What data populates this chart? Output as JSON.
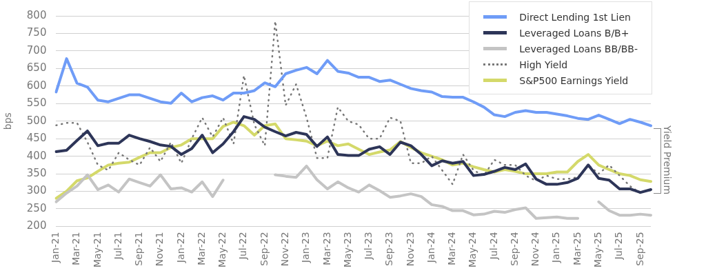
{
  "chart_data": {
    "type": "line",
    "ylabel": "bps",
    "ylim": [
      200,
      800
    ],
    "yticks": [
      200,
      250,
      300,
      350,
      400,
      450,
      500,
      550,
      600,
      650,
      700,
      750,
      800
    ],
    "grid": "y",
    "legend": "top right",
    "marker": "none",
    "categories": [
      "Jan-21",
      null,
      "Mar-21",
      null,
      "May-21",
      null,
      "Jul-21",
      null,
      "Sep-21",
      null,
      "Nov-21",
      null,
      "Jan-22",
      null,
      "Mar-22",
      null,
      "May-22",
      null,
      "Jul-22",
      null,
      "Sep-22",
      null,
      "Nov-22",
      null,
      "Jan-23",
      null,
      "Mar-23",
      null,
      "May-23",
      null,
      "Jul-23",
      null,
      "Sep-23",
      null,
      "Nov-23",
      null,
      "Jan-24",
      null,
      "Mar-24",
      null,
      "May-24",
      null,
      "Jul-24",
      null,
      "Sep-24",
      null,
      "Nov-24",
      null,
      "Jan-25",
      null,
      "Mar-25",
      null,
      "May-25",
      null,
      "Jul-25",
      null,
      "Sep-25",
      null
    ],
    "series": [
      {
        "name": "Direct Lending 1st Lien",
        "color": "#6f9cf7",
        "line_style": "solid",
        "values": [
          583,
          678,
          608,
          597,
          560,
          555,
          565,
          575,
          575,
          565,
          555,
          551,
          580,
          555,
          567,
          572,
          560,
          580,
          580,
          587,
          609,
          598,
          635,
          645,
          653,
          635,
          673,
          642,
          637,
          625,
          625,
          613,
          617,
          605,
          593,
          587,
          583,
          570,
          568,
          568,
          555,
          540,
          518,
          513,
          525,
          530,
          525,
          525,
          520,
          515,
          508,
          505,
          517,
          505,
          493,
          505,
          497,
          487
        ]
      },
      {
        "name": "Leveraged Loans B/B+",
        "color": "#2d3558",
        "line_style": "solid",
        "values": [
          413,
          417,
          445,
          472,
          430,
          437,
          437,
          460,
          450,
          442,
          432,
          428,
          405,
          422,
          460,
          410,
          435,
          470,
          513,
          505,
          483,
          470,
          458,
          468,
          462,
          428,
          455,
          405,
          402,
          402,
          420,
          427,
          405,
          440,
          430,
          405,
          373,
          387,
          380,
          385,
          345,
          348,
          357,
          368,
          362,
          378,
          335,
          320,
          320,
          325,
          337,
          375,
          337,
          332,
          307,
          307,
          297,
          305
        ]
      },
      {
        "name": "Leveraged Loans BB/BB-",
        "color": "#c4c4c4",
        "line_style": "solid",
        "values": [
          270,
          295,
          315,
          347,
          305,
          318,
          298,
          335,
          325,
          315,
          347,
          307,
          310,
          298,
          327,
          285,
          332,
          null,
          null,
          null,
          null,
          347,
          343,
          340,
          372,
          333,
          307,
          327,
          310,
          298,
          318,
          302,
          283,
          287,
          293,
          285,
          262,
          257,
          245,
          245,
          233,
          235,
          243,
          240,
          248,
          253,
          223,
          225,
          227,
          223,
          223,
          null,
          270,
          245,
          232,
          232,
          235,
          232
        ]
      },
      {
        "name": "High Yield",
        "color": "#777777",
        "line_style": "dotted",
        "values": [
          488,
          495,
          495,
          440,
          375,
          360,
          410,
          390,
          375,
          425,
          385,
          440,
          380,
          450,
          510,
          455,
          510,
          435,
          630,
          490,
          430,
          785,
          545,
          605,
          510,
          395,
          395,
          540,
          500,
          490,
          450,
          450,
          510,
          500,
          380,
          380,
          400,
          360,
          320,
          405,
          360,
          345,
          390,
          375,
          375,
          345,
          330,
          345,
          335,
          335,
          340,
          375,
          350,
          375,
          345,
          315,
          295,
          null
        ]
      },
      {
        "name": "S&P500 Earnings Yield",
        "color": "#d4d96a",
        "line_style": "solid",
        "values": [
          280,
          300,
          330,
          338,
          357,
          375,
          380,
          383,
          397,
          410,
          410,
          425,
          432,
          450,
          450,
          450,
          485,
          497,
          487,
          460,
          487,
          492,
          450,
          447,
          443,
          430,
          443,
          430,
          435,
          420,
          405,
          412,
          418,
          442,
          425,
          410,
          400,
          390,
          375,
          380,
          370,
          362,
          355,
          362,
          357,
          350,
          350,
          350,
          355,
          355,
          385,
          405,
          375,
          362,
          350,
          345,
          333,
          328
        ]
      }
    ],
    "annotations": [
      "Yield Premium"
    ]
  }
}
